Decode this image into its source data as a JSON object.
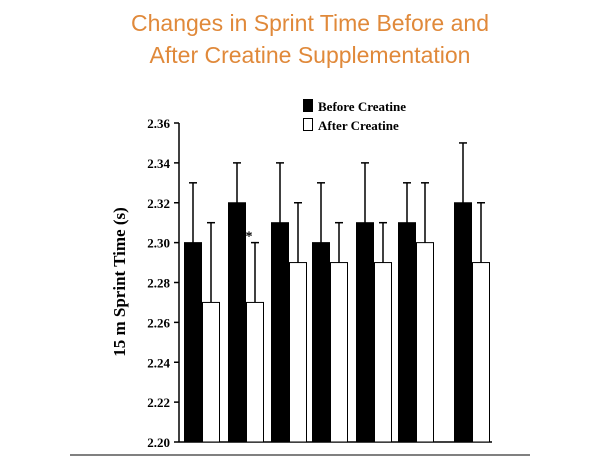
{
  "chart_data": {
    "type": "bar",
    "title_lines": [
      "Changes in Sprint Time Before and",
      "After Creatine Supplementation"
    ],
    "xlabel": "",
    "ylabel": "15 m Sprint Time (s)",
    "ylim": [
      2.2,
      2.36
    ],
    "yticks": [
      "2.20",
      "2.22",
      "2.24",
      "2.26",
      "2.28",
      "2.30",
      "2.32",
      "2.34",
      "2.36"
    ],
    "legend_position": "top-right",
    "grid": false,
    "series": [
      {
        "name": "Before Creatine",
        "color": "#000000",
        "values": [
          2.3,
          2.32,
          2.31,
          2.3,
          2.31,
          2.31,
          2.32
        ],
        "error_upper": [
          2.33,
          2.34,
          2.34,
          2.33,
          2.34,
          2.33,
          2.35
        ]
      },
      {
        "name": "After Creatine",
        "color": "#ffffff",
        "values": [
          2.27,
          2.27,
          2.29,
          2.29,
          2.29,
          2.3,
          2.29
        ],
        "error_upper": [
          2.31,
          2.3,
          2.32,
          2.31,
          2.31,
          2.33,
          2.32
        ]
      }
    ],
    "annotations": [
      {
        "text": "*",
        "series": 1,
        "group": 1
      }
    ]
  }
}
